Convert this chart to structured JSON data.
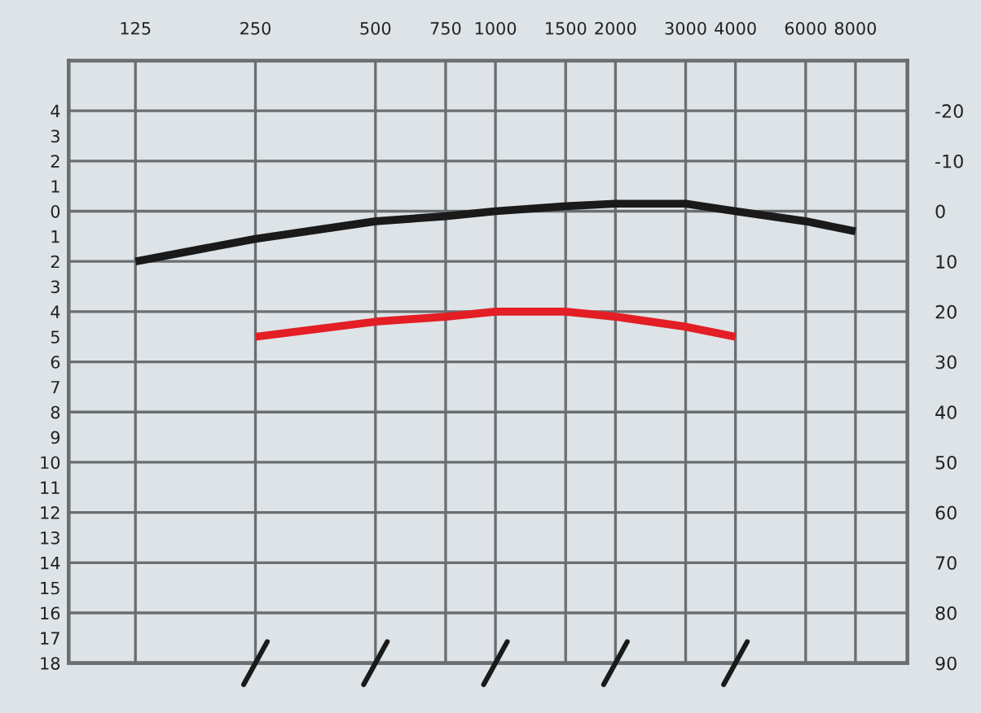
{
  "chart_data": {
    "type": "line",
    "log": "x",
    "xlim": [
      85,
      10800
    ],
    "ylim": [
      18,
      -6
    ],
    "y2lim": [
      90,
      -30
    ],
    "xticks": [
      125,
      250,
      500,
      750,
      1000,
      1500,
      2000,
      3000,
      4000,
      6000,
      8000
    ],
    "yticks": [
      {
        "value": -4,
        "label": "4"
      },
      {
        "value": -3,
        "label": "3"
      },
      {
        "value": -2,
        "label": "2"
      },
      {
        "value": -1,
        "label": "1"
      },
      0,
      1,
      2,
      3,
      4,
      5,
      6,
      7,
      8,
      9,
      10,
      11,
      12,
      13,
      14,
      15,
      16,
      17,
      18
    ],
    "y2ticks": [
      -20,
      -10,
      0,
      10,
      20,
      30,
      40,
      50,
      60,
      70,
      80,
      90
    ],
    "grid": true,
    "marker": "none",
    "line_style": "solid",
    "series": [
      {
        "color": "#1a1a1a",
        "axis": "y2",
        "x": [
          125,
          250,
          500,
          750,
          1000,
          1500,
          2000,
          3000,
          4000,
          6000,
          8000
        ],
        "values": [
          10,
          5.5,
          2,
          1,
          0,
          -1,
          -1.5,
          -1.5,
          0,
          2,
          4
        ]
      },
      {
        "color": "#e31e24",
        "axis": "y2",
        "x": [
          250,
          500,
          750,
          1000,
          1500,
          2000,
          3000,
          4000
        ],
        "values": [
          25,
          22,
          21,
          20,
          20,
          21,
          23,
          25
        ]
      }
    ]
  }
}
